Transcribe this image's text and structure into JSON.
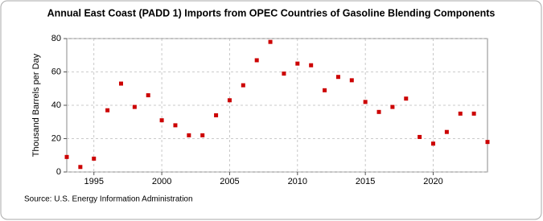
{
  "chart_data": {
    "type": "scatter",
    "title": "Annual East Coast (PADD 1) Imports from OPEC Countries of Gasoline Blending Components",
    "y_label": "Thousand Barrels per Day",
    "source": "Source: U.S. Energy Information Administration",
    "x": [
      1993,
      1994,
      1995,
      1996,
      1997,
      1998,
      1999,
      2000,
      2001,
      2002,
      2003,
      2004,
      2005,
      2006,
      2007,
      2008,
      2009,
      2010,
      2011,
      2012,
      2013,
      2014,
      2015,
      2016,
      2017,
      2018,
      2019,
      2020,
      2021,
      2022,
      2023,
      2024
    ],
    "values": [
      9,
      3,
      8,
      37,
      53,
      39,
      46,
      31,
      28,
      22,
      22,
      34,
      43,
      52,
      67,
      78,
      59,
      65,
      64,
      49,
      57,
      55,
      42,
      36,
      39,
      44,
      21,
      17,
      24,
      35,
      35,
      18
    ],
    "color": "#cc0000",
    "xlim": [
      1993,
      2024
    ],
    "xticks": [
      1995,
      2000,
      2005,
      2010,
      2015,
      2020
    ],
    "ylim": [
      0,
      80
    ],
    "yticks": [
      0,
      20,
      40,
      60,
      80
    ],
    "grid": true
  }
}
